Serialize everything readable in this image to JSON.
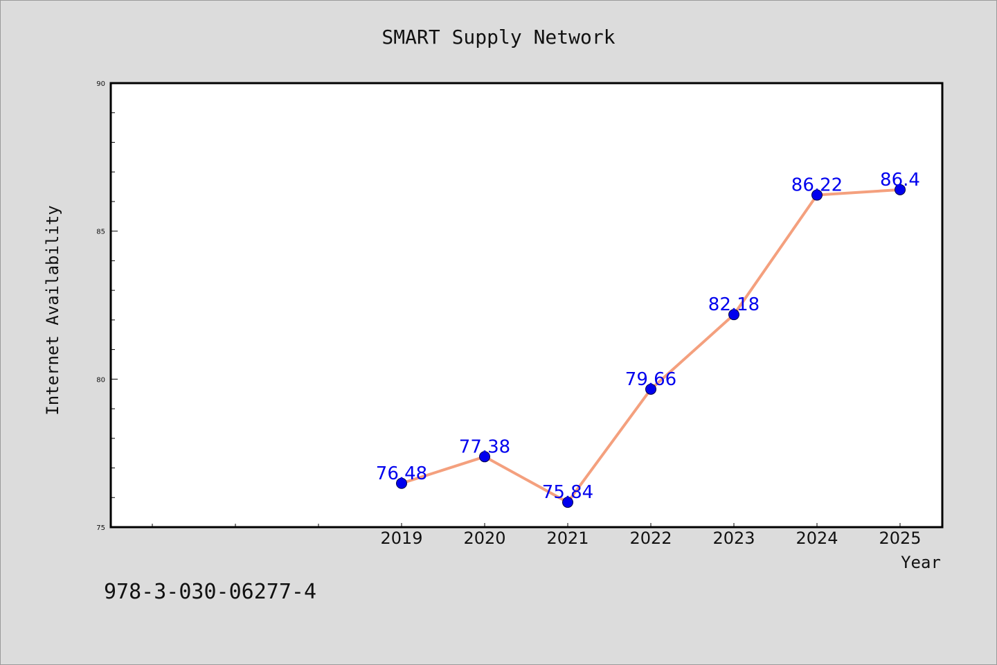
{
  "chart_data": {
    "type": "line",
    "title": "SMART Supply Network",
    "xlabel": "Year",
    "ylabel": "Internet Availability",
    "categories": [
      "2019",
      "2020",
      "2021",
      "2022",
      "2023",
      "2024",
      "2025"
    ],
    "series": [
      {
        "values": [
          76.48,
          77.38,
          75.84,
          79.66,
          82.18,
          86.22,
          86.4
        ],
        "labels": [
          "76.48",
          "77.38",
          "75.84",
          "79.66",
          "82.18",
          "86.22",
          "86.4"
        ],
        "line_color": "#f4a07e",
        "marker_color": "#0000ee"
      }
    ],
    "ylim": [
      75,
      90
    ],
    "yticks": [
      75,
      80,
      85,
      90
    ],
    "ytick_labels": [
      "75",
      "80",
      "85",
      "90"
    ],
    "grid": false,
    "legend": "none"
  },
  "footer": {
    "text": "978-3-030-06277-4"
  }
}
